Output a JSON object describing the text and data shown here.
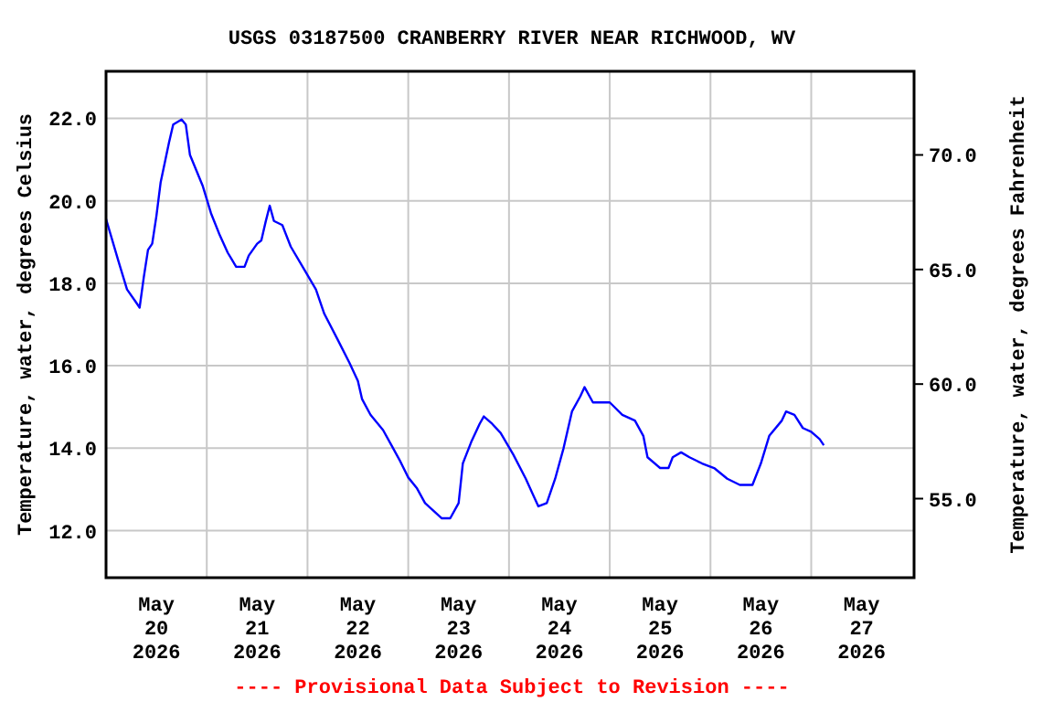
{
  "chart_data": {
    "type": "line",
    "title": "USGS 03187500 CRANBERRY RIVER NEAR RICHWOOD, WV",
    "ylabel": "Temperature, water, degrees Celsius",
    "y2label": "Temperature, water, degrees Fahrenheit",
    "annotations": [
      "---- Provisional Data Subject to Revision ----"
    ],
    "x": [
      "2026-05-19T12:00",
      "2026-05-19T15:00",
      "2026-05-19T17:00",
      "2026-05-19T19:00",
      "2026-05-19T20:00",
      "2026-05-19T21:00",
      "2026-05-19T22:00",
      "2026-05-19T23:00",
      "2026-05-20T00:00",
      "2026-05-20T01:00",
      "2026-05-20T03:00",
      "2026-05-20T04:00",
      "2026-05-20T06:00",
      "2026-05-20T07:00",
      "2026-05-20T08:00",
      "2026-05-20T11:00",
      "2026-05-20T13:00",
      "2026-05-20T15:00",
      "2026-05-20T17:00",
      "2026-05-20T19:00",
      "2026-05-20T21:00",
      "2026-05-20T22:00",
      "2026-05-21T00:00",
      "2026-05-21T01:00",
      "2026-05-21T02:00",
      "2026-05-21T03:00",
      "2026-05-21T04:00",
      "2026-05-21T06:00",
      "2026-05-21T08:00",
      "2026-05-21T11:00",
      "2026-05-21T14:00",
      "2026-05-21T16:00",
      "2026-05-21T19:00",
      "2026-05-21T22:00",
      "2026-05-22T00:00",
      "2026-05-22T01:00",
      "2026-05-22T03:00",
      "2026-05-22T06:00",
      "2026-05-22T08:00",
      "2026-05-22T10:00",
      "2026-05-22T12:00",
      "2026-05-22T14:00",
      "2026-05-22T16:00",
      "2026-05-22T20:00",
      "2026-05-22T22:00",
      "2026-05-23T00:00",
      "2026-05-23T01:00",
      "2026-05-23T03:00",
      "2026-05-23T05:00",
      "2026-05-23T06:00",
      "2026-05-23T08:00",
      "2026-05-23T10:00",
      "2026-05-23T13:00",
      "2026-05-23T16:00",
      "2026-05-23T18:00",
      "2026-05-23T19:00",
      "2026-05-23T21:00",
      "2026-05-23T23:00",
      "2026-05-24T01:00",
      "2026-05-24T03:00",
      "2026-05-24T05:00",
      "2026-05-24T06:00",
      "2026-05-24T08:00",
      "2026-05-24T12:00",
      "2026-05-24T15:00",
      "2026-05-24T18:00",
      "2026-05-24T20:00",
      "2026-05-24T21:00",
      "2026-05-25T00:00",
      "2026-05-25T02:00",
      "2026-05-25T03:00",
      "2026-05-25T05:00",
      "2026-05-25T07:00",
      "2026-05-25T10:00",
      "2026-05-25T13:00",
      "2026-05-25T16:00",
      "2026-05-25T19:00",
      "2026-05-25T22:00",
      "2026-05-26T00:00",
      "2026-05-26T02:00",
      "2026-05-26T05:00",
      "2026-05-26T06:00",
      "2026-05-26T08:00",
      "2026-05-26T10:00",
      "2026-05-26T12:00",
      "2026-05-26T14:00",
      "2026-05-26T15:00"
    ],
    "series": [
      {
        "color": "#0000ff",
        "values": [
          19.56,
          18.52,
          17.85,
          17.56,
          17.41,
          18.15,
          18.81,
          18.96,
          19.63,
          20.44,
          21.41,
          21.85,
          21.97,
          21.85,
          21.11,
          20.37,
          19.7,
          19.19,
          18.74,
          18.4,
          18.4,
          18.67,
          18.96,
          19.04,
          19.48,
          19.88,
          19.51,
          19.41,
          18.89,
          18.37,
          17.85,
          17.26,
          16.67,
          16.07,
          15.63,
          15.19,
          14.81,
          14.44,
          14.07,
          13.7,
          13.29,
          13.04,
          12.67,
          12.3,
          12.3,
          12.67,
          13.63,
          14.15,
          14.59,
          14.77,
          14.59,
          14.37,
          13.85,
          13.26,
          12.81,
          12.59,
          12.67,
          13.26,
          14.0,
          14.89,
          15.26,
          15.48,
          15.11,
          15.11,
          14.81,
          14.67,
          14.3,
          13.78,
          13.52,
          13.52,
          13.78,
          13.9,
          13.78,
          13.63,
          13.51,
          13.26,
          13.11,
          13.11,
          13.63,
          14.3,
          14.67,
          14.89,
          14.81,
          14.49,
          14.4,
          14.22,
          14.07
        ]
      }
    ],
    "xlim": [
      "2026-05-19T12:00",
      "2026-05-27T12:30"
    ],
    "xticks": [
      {
        "value": "2026-05-20",
        "label": "May\n20\n2026"
      },
      {
        "value": "2026-05-20T12:00",
        "label": null
      },
      {
        "value": "2026-05-21",
        "label": "May\n21\n2026"
      },
      {
        "value": "2026-05-21T12:00",
        "label": null
      },
      {
        "value": "2026-05-22",
        "label": "May\n22\n2026"
      },
      {
        "value": "2026-05-22T12:00",
        "label": null
      },
      {
        "value": "2026-05-23",
        "label": "May\n23\n2026"
      },
      {
        "value": "2026-05-23T12:00",
        "label": null
      },
      {
        "value": "2026-05-24",
        "label": "May\n24\n2026"
      },
      {
        "value": "2026-05-24T12:00",
        "label": null
      },
      {
        "value": "2026-05-25",
        "label": "May\n25\n2026"
      },
      {
        "value": "2026-05-25T12:00",
        "label": null
      },
      {
        "value": "2026-05-26",
        "label": "May\n26\n2026"
      },
      {
        "value": "2026-05-26T12:00",
        "label": null
      },
      {
        "value": "2026-05-27",
        "label": "May\n27\n2026"
      }
    ],
    "ylim": [
      10.86,
      23.14
    ],
    "yticks": [
      {
        "value": 12,
        "label": "12.0"
      },
      {
        "value": 14,
        "label": "14.0"
      },
      {
        "value": 16,
        "label": "16.0"
      },
      {
        "value": 18,
        "label": "18.0"
      },
      {
        "value": 20,
        "label": "20.0"
      },
      {
        "value": 22,
        "label": "22.0"
      }
    ],
    "y2lim": [
      51.55,
      73.65
    ],
    "y2ticks": [
      {
        "value": 55,
        "label": "55.0"
      },
      {
        "value": 60,
        "label": "60.0"
      },
      {
        "value": 65,
        "label": "65.0"
      },
      {
        "value": 70,
        "label": "70.0"
      }
    ],
    "grid": true,
    "line_style": "solid",
    "marker": "none"
  }
}
